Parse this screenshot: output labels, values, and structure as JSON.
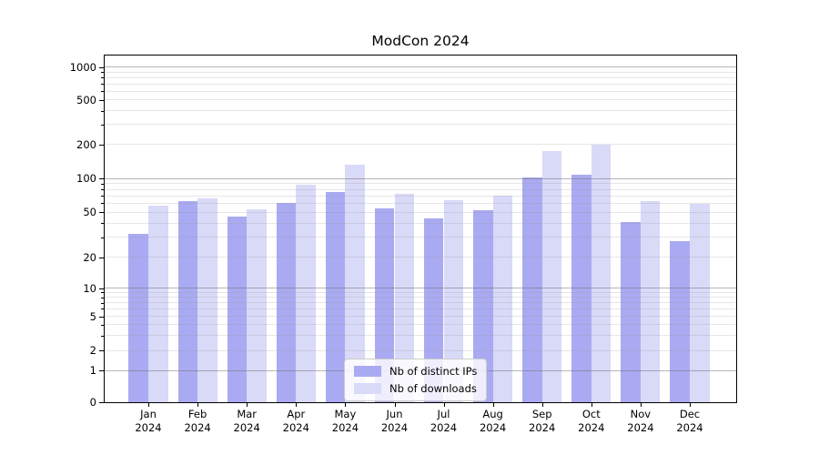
{
  "chart_data": {
    "type": "bar",
    "title": "ModCon 2024",
    "categories": [
      "Jan",
      "Feb",
      "Mar",
      "Apr",
      "May",
      "Jun",
      "Jul",
      "Aug",
      "Sep",
      "Oct",
      "Nov",
      "Dec"
    ],
    "category_year": "2024",
    "series": [
      {
        "name": "Nb of distinct IPs",
        "color": "#aaaaf2",
        "values": [
          32,
          63,
          46,
          60,
          76,
          54,
          44,
          52,
          103,
          108,
          41,
          28
        ]
      },
      {
        "name": "Nb of downloads",
        "color": "#d9d9f8",
        "values": [
          57,
          66,
          53,
          88,
          132,
          73,
          64,
          70,
          175,
          200,
          63,
          59
        ]
      }
    ],
    "yscale": "symlog-like (log above 1, linear segment 0-1)",
    "yticks": [
      0,
      1,
      2,
      5,
      10,
      20,
      50,
      100,
      200,
      500,
      1000
    ],
    "ytick_fractions": [
      [
        0,
        0
      ],
      [
        1,
        0.0914
      ],
      [
        2,
        0.1488
      ],
      [
        5,
        0.248
      ],
      [
        10,
        0.329
      ],
      [
        20,
        0.4178
      ],
      [
        50,
        0.5483
      ],
      [
        100,
        0.6449
      ],
      [
        200,
        0.7441
      ],
      [
        500,
        0.8721
      ],
      [
        1000,
        0.9661
      ]
    ],
    "major_gridlines": [
      1,
      10,
      100,
      1000
    ],
    "minor_gridlines": [
      3,
      4,
      6,
      7,
      8,
      9,
      30,
      40,
      60,
      70,
      80,
      90,
      300,
      400,
      600,
      700,
      800,
      900
    ],
    "grid": "horizontal major+minor, drawn above bars",
    "legend_position": "lower center",
    "ylim": [
      0,
      1275
    ],
    "colors": {
      "bar_distinct_ips": "#aaaaf2",
      "bar_downloads": "#d9d9f8",
      "grid_major": "#6e6e6e",
      "grid_minor": "#d9d9d9",
      "spine": "#000000",
      "background": "#ffffff",
      "legend_border": "#cccccc"
    }
  }
}
